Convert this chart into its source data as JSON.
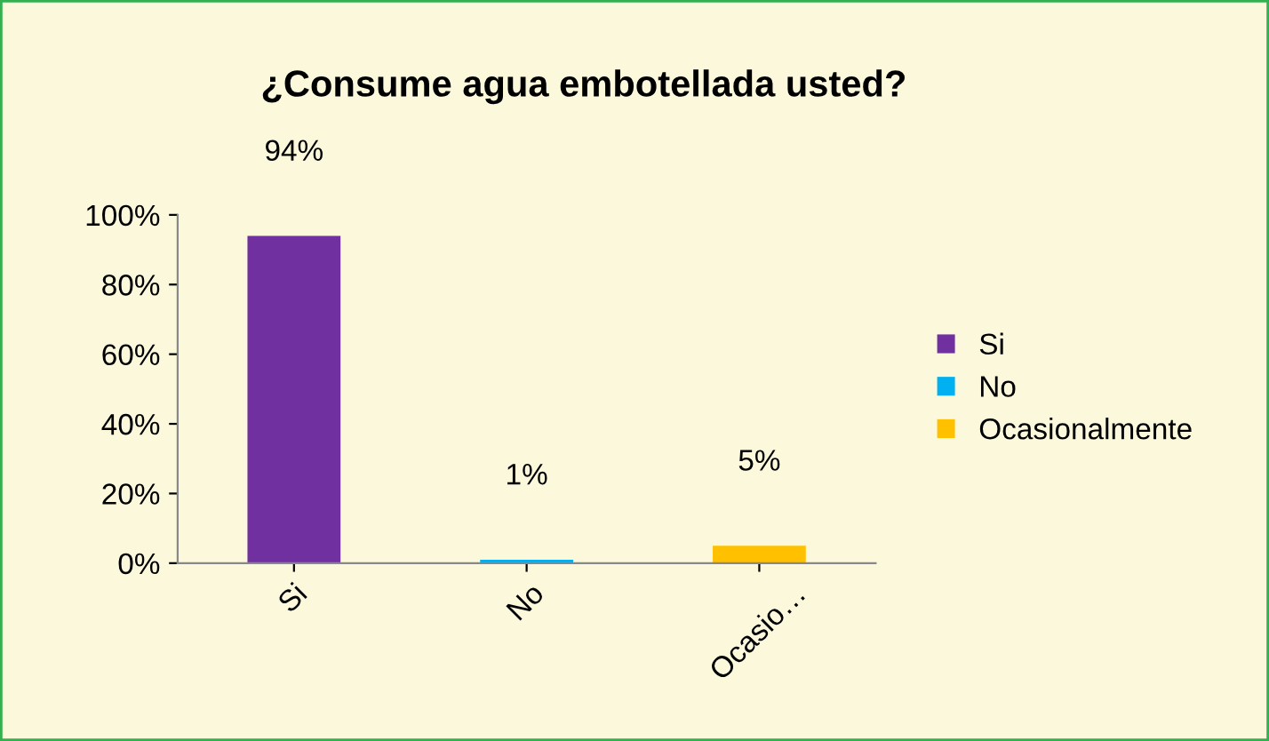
{
  "chart_data": {
    "type": "bar",
    "title": "¿Consume agua embotellada usted?",
    "categories": [
      "Si",
      "No",
      "Ocasio…"
    ],
    "series": [
      {
        "name": "Si",
        "color": "#7030a0",
        "values": [
          94,
          null,
          null
        ]
      },
      {
        "name": "No",
        "color": "#00b0f0",
        "values": [
          null,
          1,
          null
        ]
      },
      {
        "name": "Ocasionalmente",
        "color": "#ffc000",
        "values": [
          null,
          null,
          5
        ]
      }
    ],
    "ylim": [
      0,
      100
    ],
    "yticks": [
      {
        "value": 0,
        "label": "0%"
      },
      {
        "value": 20,
        "label": "20%"
      },
      {
        "value": 40,
        "label": "40%"
      },
      {
        "value": 60,
        "label": "60%"
      },
      {
        "value": 80,
        "label": "80%"
      },
      {
        "value": 100,
        "label": "100%"
      }
    ],
    "value_labels": [
      "94%",
      "1%",
      "5%"
    ],
    "legend": "right",
    "grid": false
  }
}
